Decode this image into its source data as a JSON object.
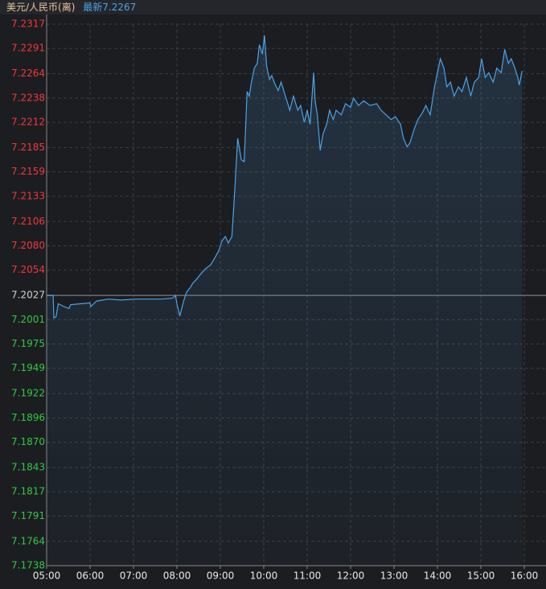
{
  "chart_data": {
    "type": "line",
    "title": "美元/人民币(离)",
    "latest_prefix": "最新",
    "latest": 7.2267,
    "reference_line": 7.2027,
    "up_color": "#f0393a",
    "down_color": "#2ecc40",
    "flat_color": "#d0d0d0",
    "grid": true,
    "xlim": [
      "05:00",
      "16:30"
    ],
    "xticks": [
      "05:00",
      "06:00",
      "07:00",
      "08:00",
      "09:00",
      "10:00",
      "11:00",
      "12:00",
      "13:00",
      "14:00",
      "15:00",
      "16:00"
    ],
    "ylim": [
      7.1738,
      7.2317
    ],
    "yticks": [
      7.2317,
      7.2291,
      7.2264,
      7.2238,
      7.2212,
      7.2185,
      7.2159,
      7.2133,
      7.2106,
      {
        "value": 7.208,
        "label": "7.2080"
      },
      7.2054,
      7.2027,
      7.2001,
      7.1975,
      7.1949,
      7.1922,
      7.1896,
      {
        "value": 7.187,
        "label": "7.1870"
      },
      7.1843,
      7.1817,
      7.1791,
      7.1764,
      7.1738
    ],
    "x": [
      "05:00",
      "05:09",
      "05:10",
      "05:13",
      "05:16",
      "05:24",
      "05:31",
      "05:33",
      "05:47",
      "06:00",
      "06:01",
      "06:09",
      "06:26",
      "06:42",
      "07:04",
      "07:38",
      "07:54",
      "07:58",
      "08:00",
      "08:04",
      "08:09",
      "08:13",
      "08:18",
      "08:22",
      "08:28",
      "08:33",
      "08:39",
      "08:47",
      "08:53",
      "08:58",
      "09:02",
      "09:07",
      "09:11",
      "09:16",
      "09:20",
      "09:24",
      "09:29",
      "09:33",
      "09:37",
      "09:40",
      "09:43",
      "09:47",
      "09:51",
      "09:54",
      "09:58",
      "10:01",
      "10:04",
      "10:08",
      "10:11",
      "10:16",
      "10:20",
      "10:24",
      "10:30",
      "10:36",
      "10:41",
      "10:47",
      "10:51",
      "10:56",
      "11:00",
      "11:04",
      "11:09",
      "11:11",
      "11:14",
      "11:18",
      "11:22",
      "11:27",
      "11:31",
      "11:36",
      "11:40",
      "11:47",
      "11:53",
      "12:00",
      "12:04",
      "12:11",
      "12:18",
      "12:27",
      "12:36",
      "12:42",
      "12:49",
      "12:56",
      "13:02",
      "13:09",
      "13:13",
      "13:18",
      "13:22",
      "13:28",
      "13:33",
      "13:39",
      "13:44",
      "13:50",
      "13:56",
      "14:00",
      "14:04",
      "14:09",
      "14:13",
      "14:18",
      "14:23",
      "14:29",
      "14:34",
      "14:40",
      "14:46",
      "14:51",
      "14:57",
      "15:01",
      "15:06",
      "15:11",
      "15:17",
      "15:22",
      "15:28",
      "15:33",
      "15:38",
      "15:42",
      "15:47",
      "15:51",
      "15:53",
      "15:57"
    ],
    "series": [
      {
        "name": "美元/人民币(离)",
        "color": "#4aa3e8",
        "values": [
          7.2027,
          7.2027,
          7.2003,
          7.2004,
          7.2018,
          7.2015,
          7.2013,
          7.2017,
          7.2018,
          7.2019,
          7.2015,
          7.2021,
          7.2023,
          7.2022,
          7.2023,
          7.2023,
          7.2024,
          7.2027,
          7.2018,
          7.2005,
          7.202,
          7.203,
          7.2035,
          7.204,
          7.2045,
          7.205,
          7.2055,
          7.206,
          7.2068,
          7.2075,
          7.2085,
          7.209,
          7.2083,
          7.209,
          7.214,
          7.2195,
          7.2172,
          7.217,
          7.2245,
          7.224,
          7.2255,
          7.227,
          7.2275,
          7.2295,
          7.2285,
          7.2305,
          7.2272,
          7.2258,
          7.2262,
          7.2252,
          7.2246,
          7.2255,
          7.224,
          7.2225,
          7.224,
          7.2225,
          7.223,
          7.2212,
          7.2225,
          7.221,
          7.2265,
          7.2235,
          7.222,
          7.2182,
          7.22,
          7.221,
          7.2225,
          7.2215,
          7.2225,
          7.222,
          7.2232,
          7.2228,
          7.2238,
          7.223,
          7.2235,
          7.223,
          7.2232,
          7.2225,
          7.222,
          7.2215,
          7.2218,
          7.221,
          7.2195,
          7.2186,
          7.219,
          7.2205,
          7.2215,
          7.2222,
          7.223,
          7.222,
          7.225,
          7.2265,
          7.228,
          7.227,
          7.225,
          7.2255,
          7.224,
          7.225,
          7.2245,
          7.226,
          7.224,
          7.2255,
          7.226,
          7.228,
          7.226,
          7.2265,
          7.2255,
          7.227,
          7.2265,
          7.229,
          7.2275,
          7.228,
          7.227,
          7.226,
          7.2252,
          7.2267
        ]
      }
    ]
  }
}
